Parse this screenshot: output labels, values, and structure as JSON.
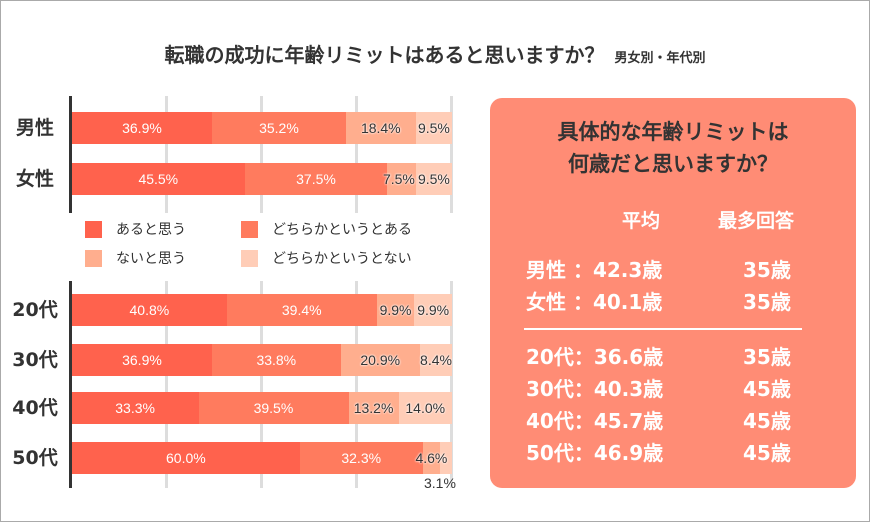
{
  "chart_data": {
    "type": "bar",
    "orientation": "horizontal",
    "stacked": true,
    "title": "転職の成功に年齢リミットはあると思いますか？",
    "subtitle": "男女別・年代別",
    "xlim": [
      0,
      100
    ],
    "grid": true,
    "legend_placement": "middle",
    "legend": [
      "あると思う",
      "どちらかというとある",
      "ないと思う",
      "どちらかというとない"
    ],
    "colors": [
      "#ff624d",
      "#ff7b5e",
      "#ffae8e",
      "#ffcdb7"
    ],
    "groups": [
      {
        "categories": [
          "男性",
          "女性"
        ],
        "values": [
          [
            36.9,
            35.2,
            18.4,
            9.5
          ],
          [
            45.5,
            37.5,
            7.5,
            9.5
          ]
        ]
      },
      {
        "categories": [
          "20代",
          "30代",
          "40代",
          "50代"
        ],
        "values": [
          [
            40.8,
            39.4,
            9.9,
            9.9
          ],
          [
            36.9,
            33.8,
            20.9,
            8.4
          ],
          [
            33.3,
            39.5,
            13.2,
            14.0
          ],
          [
            60.0,
            32.3,
            4.6,
            3.1
          ]
        ]
      }
    ]
  },
  "panel": {
    "title_line1": "具体的な年齢リミットは",
    "title_line2": "何歳だと思いますか？",
    "col_avg": "平均",
    "col_mode": "最多回答",
    "rows": [
      {
        "label": "男性 ：42.3歳",
        "mode": "35歳"
      },
      {
        "label": "女性 ：40.1歳",
        "mode": "35歳"
      },
      {
        "label": "20代：36.6歳",
        "mode": "35歳"
      },
      {
        "label": "30代：40.3歳",
        "mode": "45歳"
      },
      {
        "label": "40代：45.7歳",
        "mode": "45歳"
      },
      {
        "label": "50代：46.9歳",
        "mode": "45歳"
      }
    ],
    "color": "#ff8c75"
  }
}
